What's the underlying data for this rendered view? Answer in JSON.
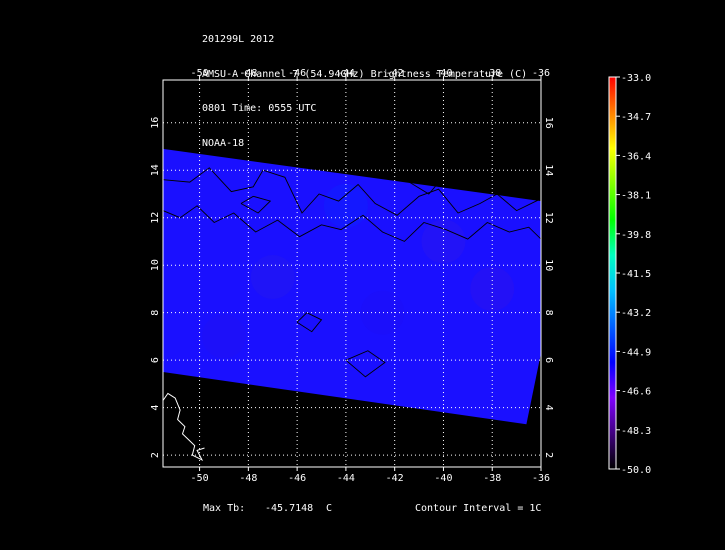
{
  "header": {
    "line1": "201299L 2012",
    "line2": "AMSU-A Channel 7 (54.94GHz) Brightness Temperature (C)",
    "line3": "0801 Time: 0555 UTC",
    "line4": "NOAA-18"
  },
  "footer": {
    "max_label": "Max Tb:",
    "max_value": "-45.7148",
    "max_unit": "C",
    "contour": "Contour Interval = 1C"
  },
  "map": {
    "lon_ticks": [
      "-50",
      "-48",
      "-46",
      "-44",
      "-42",
      "-40",
      "-38",
      "-36"
    ],
    "lat_ticks": [
      "2",
      "4",
      "6",
      "8",
      "10",
      "12",
      "14",
      "16"
    ],
    "lon_range": [
      -51.5,
      -36
    ],
    "lat_range": [
      1.5,
      17.8
    ]
  },
  "colorbar": {
    "labels": [
      "-33.0",
      "-34.7",
      "-36.4",
      "-38.1",
      "-39.8",
      "-41.5",
      "-43.2",
      "-44.9",
      "-46.6",
      "-48.3",
      "-50.0"
    ],
    "colors": [
      "#ff0000",
      "#ff8000",
      "#ffff00",
      "#80ff00",
      "#00ff00",
      "#00ffc0",
      "#00c0ff",
      "#0060ff",
      "#0000ff",
      "#8000ff",
      "#400080",
      "#000000"
    ]
  },
  "chart_data": {
    "type": "heatmap",
    "title": "AMSU-A Channel 7 (54.94GHz) Brightness Temperature (C)",
    "xlabel": "",
    "ylabel": "",
    "xlim": [
      -51.5,
      -36
    ],
    "ylim": [
      1.5,
      17.8
    ],
    "swath_polygon_lonlat": [
      [
        -51.5,
        14.9
      ],
      [
        -36.0,
        12.7
      ],
      [
        -36.0,
        6.3
      ],
      [
        -36.6,
        3.3
      ],
      [
        -51.5,
        5.5
      ]
    ],
    "colorscale_range": [
      -50.0,
      -33.0
    ],
    "max_tb_c": -45.7148,
    "contour_interval_c": 1
  }
}
